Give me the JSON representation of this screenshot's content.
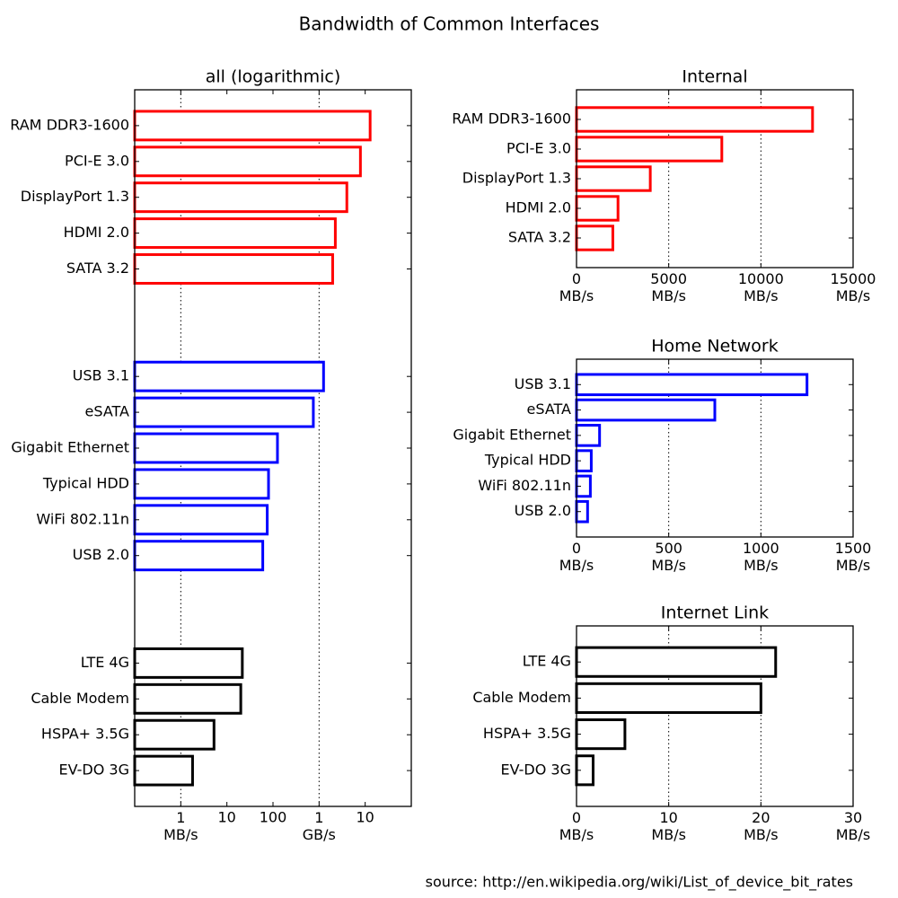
{
  "title": "Bandwidth of Common Interfaces",
  "source": "source: http://en.wikipedia.org/wiki/List_of_device_bit_rates",
  "chart_data": [
    {
      "type": "barh",
      "title": "all (logarithmic)",
      "xscale": "log",
      "xlim": [
        0.1,
        100000
      ],
      "xticks": [
        {
          "value": 1,
          "label": "1\nMB/s"
        },
        10,
        100,
        {
          "value": 1000,
          "label": "1\nGB/s"
        },
        {
          "value": 10000,
          "label": "10"
        }
      ],
      "grid": true,
      "gridlines": [
        1,
        1000
      ],
      "groups": [
        {
          "color": "#ff0000",
          "categories": [
            "RAM DDR3-1600",
            "PCI-E 3.0",
            "DisplayPort 1.3",
            "HDMI 2.0",
            "SATA 3.2"
          ],
          "values": [
            12800,
            7880,
            4000,
            2250,
            1970
          ]
        },
        {
          "color": "#0000ff",
          "categories": [
            "USB 3.1",
            "eSATA",
            "Gigabit Ethernet",
            "Typical HDD",
            "WiFi 802.11n",
            "USB 2.0"
          ],
          "values": [
            1250,
            750,
            125,
            80,
            75,
            60
          ]
        },
        {
          "color": "#000000",
          "categories": [
            "LTE 4G",
            "Cable Modem",
            "HSPA+ 3.5G",
            "EV-DO 3G"
          ],
          "values": [
            21.6,
            20,
            5.25,
            1.8
          ]
        }
      ]
    },
    {
      "type": "barh",
      "title": "Internal",
      "color": "#ff0000",
      "xlim": [
        0,
        15000
      ],
      "xticks": [
        {
          "value": 0,
          "label": "0\nMB/s"
        },
        {
          "value": 5000,
          "label": "5000\nMB/s"
        },
        {
          "value": 10000,
          "label": "10000\nMB/s"
        },
        {
          "value": 15000,
          "label": "15000\nMB/s"
        }
      ],
      "grid": true,
      "categories": [
        "RAM DDR3-1600",
        "PCI-E 3.0",
        "DisplayPort 1.3",
        "HDMI 2.0",
        "SATA 3.2"
      ],
      "values": [
        12800,
        7880,
        4000,
        2250,
        1970
      ]
    },
    {
      "type": "barh",
      "title": "Home Network",
      "color": "#0000ff",
      "xlim": [
        0,
        1500
      ],
      "xticks": [
        {
          "value": 0,
          "label": "0\nMB/s"
        },
        {
          "value": 500,
          "label": "500\nMB/s"
        },
        {
          "value": 1000,
          "label": "1000\nMB/s"
        },
        {
          "value": 1500,
          "label": "1500\nMB/s"
        }
      ],
      "grid": true,
      "categories": [
        "USB 3.1",
        "eSATA",
        "Gigabit Ethernet",
        "Typical HDD",
        "WiFi 802.11n",
        "USB 2.0"
      ],
      "values": [
        1250,
        750,
        125,
        80,
        75,
        60
      ]
    },
    {
      "type": "barh",
      "title": "Internet Link",
      "color": "#000000",
      "xlim": [
        0,
        30
      ],
      "xticks": [
        {
          "value": 0,
          "label": "0\nMB/s"
        },
        {
          "value": 10,
          "label": "10\nMB/s"
        },
        {
          "value": 20,
          "label": "20\nMB/s"
        },
        {
          "value": 30,
          "label": "30\nMB/s"
        }
      ],
      "grid": true,
      "categories": [
        "LTE 4G",
        "Cable Modem",
        "HSPA+ 3.5G",
        "EV-DO 3G"
      ],
      "values": [
        21.6,
        20,
        5.25,
        1.8
      ]
    }
  ]
}
